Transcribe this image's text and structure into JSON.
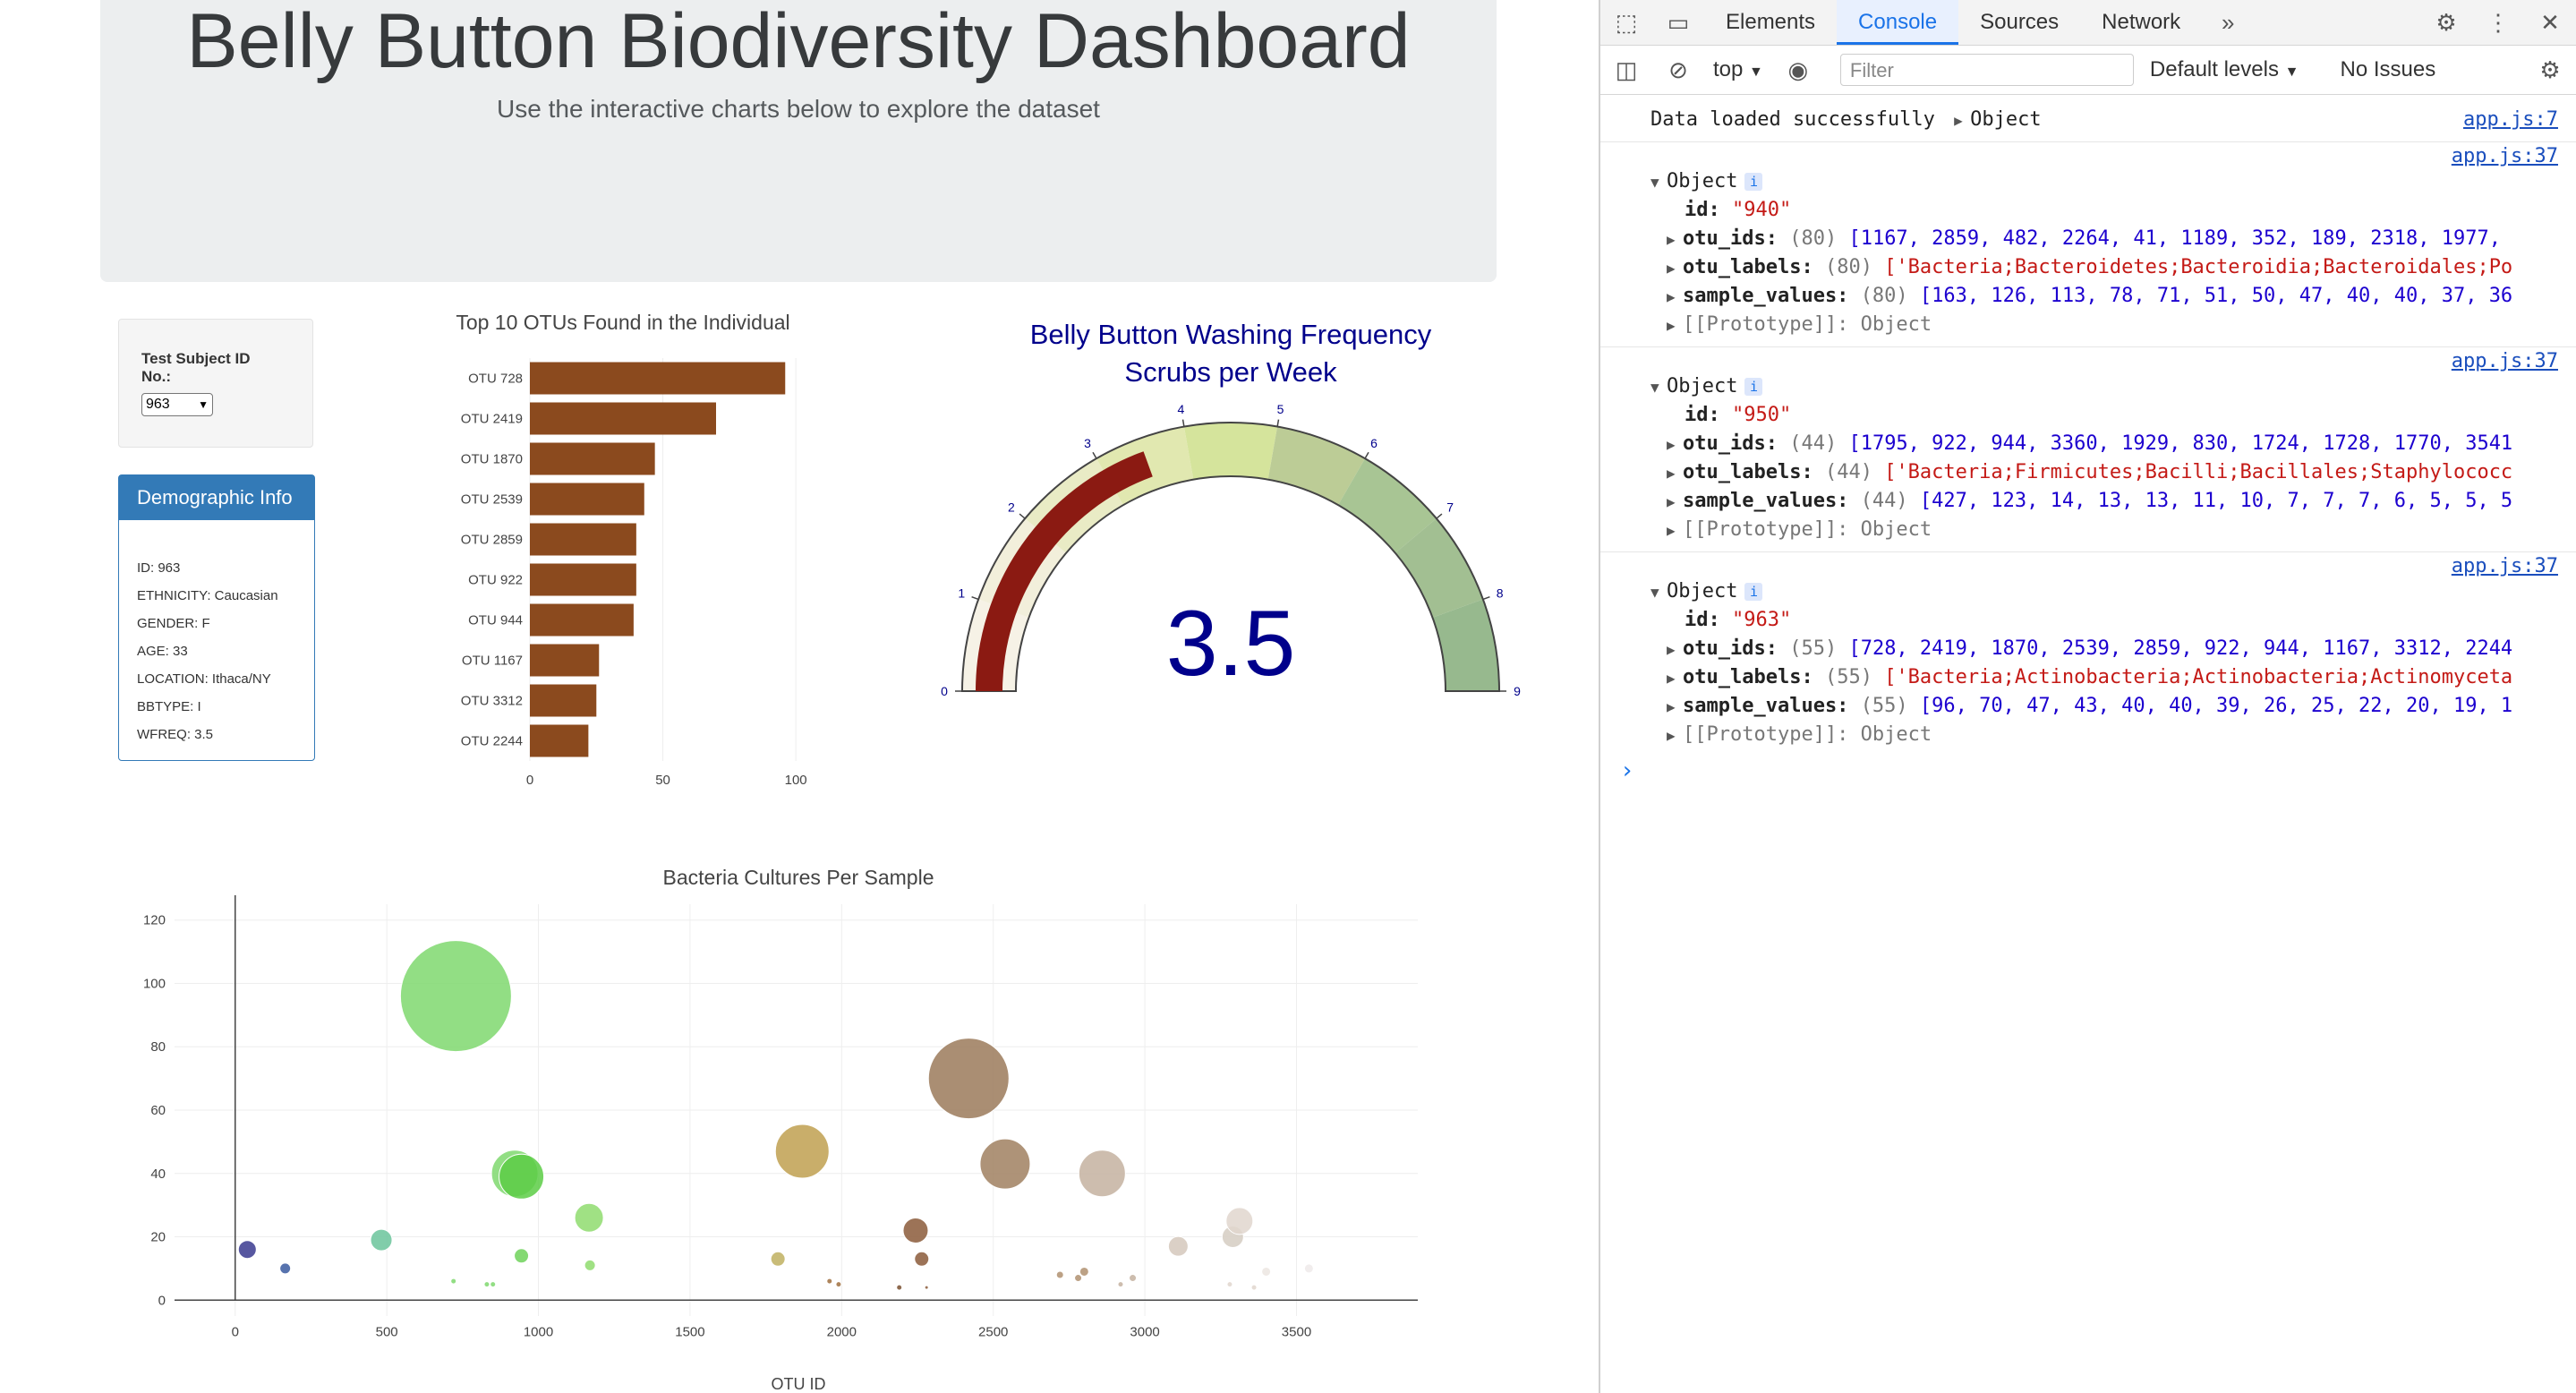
{
  "header": {
    "title": "Belly Button Biodiversity Dashboard",
    "subtitle": "Use the interactive charts below to explore the dataset"
  },
  "selector": {
    "label": "Test Subject ID No.:",
    "selected": "963"
  },
  "demographics": {
    "heading": "Demographic Info",
    "rows": [
      "ID: 963",
      "ETHNICITY: Caucasian",
      "GENDER: F",
      "AGE: 33",
      "LOCATION: Ithaca/NY",
      "BBTYPE: I",
      "WFREQ: 3.5"
    ]
  },
  "chart_data": [
    {
      "type": "bar",
      "orientation": "horizontal",
      "title": "Top 10 OTUs Found in the Individual",
      "categories": [
        "OTU 728",
        "OTU 2419",
        "OTU 1870",
        "OTU 2539",
        "OTU 2859",
        "OTU 922",
        "OTU 944",
        "OTU 1167",
        "OTU 3312",
        "OTU 2244"
      ],
      "values": [
        96,
        70,
        47,
        43,
        40,
        40,
        39,
        26,
        25,
        22
      ],
      "xlim": [
        0,
        105
      ],
      "xticks": [
        "0",
        "50",
        "100"
      ],
      "color": "#8b4a1e"
    },
    {
      "type": "gauge",
      "title": "Belly Button Washing Frequency",
      "subtitle": "Scrubs per Week",
      "value": 3.5,
      "range": [
        0,
        9
      ],
      "ticks": [
        "0",
        "1",
        "2",
        "3",
        "4",
        "5",
        "6",
        "7",
        "8",
        "9"
      ],
      "bar_color": "#8b1a12",
      "step_colors": [
        "#f6f2e6",
        "#f2efdb",
        "#e9ebc5",
        "#e1e8b0",
        "#d5e49c",
        "#bccc96",
        "#a8c594",
        "#a2bf92",
        "#97b98e"
      ]
    },
    {
      "type": "scatter",
      "subtype": "bubble",
      "title": "Bacteria Cultures Per Sample",
      "xlabel": "OTU ID",
      "xlim": [
        -200,
        3900
      ],
      "ylim": [
        -5,
        125
      ],
      "xticks": [
        0,
        500,
        1000,
        1500,
        2000,
        2500,
        3000,
        3500
      ],
      "yticks": [
        0,
        20,
        40,
        60,
        80,
        100,
        120
      ],
      "points": [
        {
          "x": 40,
          "y": 16,
          "r": 10,
          "color": "#3a3a8f"
        },
        {
          "x": 165,
          "y": 10,
          "r": 6,
          "color": "#3a5aa0"
        },
        {
          "x": 482,
          "y": 19,
          "r": 12,
          "color": "#6bc49b"
        },
        {
          "x": 728,
          "y": 96,
          "r": 62,
          "color": "#7fd86e"
        },
        {
          "x": 720,
          "y": 6,
          "r": 3,
          "color": "#7fd86e"
        },
        {
          "x": 830,
          "y": 5,
          "r": 3,
          "color": "#7fd86e"
        },
        {
          "x": 850,
          "y": 5,
          "r": 3,
          "color": "#7fd86e"
        },
        {
          "x": 922,
          "y": 40,
          "r": 26,
          "color": "#7fd86e"
        },
        {
          "x": 944,
          "y": 39,
          "r": 25,
          "color": "#5ccc45"
        },
        {
          "x": 944,
          "y": 14,
          "r": 8,
          "color": "#6ed25a"
        },
        {
          "x": 1167,
          "y": 26,
          "r": 16,
          "color": "#8fdc6e"
        },
        {
          "x": 1170,
          "y": 11,
          "r": 6,
          "color": "#8fdc6e"
        },
        {
          "x": 1790,
          "y": 13,
          "r": 8,
          "color": "#c0b060"
        },
        {
          "x": 1870,
          "y": 47,
          "r": 30,
          "color": "#c0a050"
        },
        {
          "x": 1960,
          "y": 6,
          "r": 3,
          "color": "#a07040"
        },
        {
          "x": 1990,
          "y": 5,
          "r": 3,
          "color": "#a07040"
        },
        {
          "x": 2190,
          "y": 4,
          "r": 3,
          "color": "#7a5030"
        },
        {
          "x": 2244,
          "y": 22,
          "r": 14,
          "color": "#8b5a3a"
        },
        {
          "x": 2264,
          "y": 13,
          "r": 8,
          "color": "#8b5a3a"
        },
        {
          "x": 2280,
          "y": 4,
          "r": 2,
          "color": "#8b5a3a"
        },
        {
          "x": 2419,
          "y": 70,
          "r": 45,
          "color": "#9b7a5a"
        },
        {
          "x": 2539,
          "y": 43,
          "r": 28,
          "color": "#a08060"
        },
        {
          "x": 2720,
          "y": 8,
          "r": 4,
          "color": "#b09070"
        },
        {
          "x": 2780,
          "y": 7,
          "r": 4,
          "color": "#b09070"
        },
        {
          "x": 2800,
          "y": 9,
          "r": 5,
          "color": "#b09070"
        },
        {
          "x": 2859,
          "y": 40,
          "r": 26,
          "color": "#c4b2a0"
        },
        {
          "x": 2920,
          "y": 5,
          "r": 3,
          "color": "#c4b2a0"
        },
        {
          "x": 2960,
          "y": 7,
          "r": 4,
          "color": "#c4b2a0"
        },
        {
          "x": 3110,
          "y": 17,
          "r": 11,
          "color": "#d5c8bc"
        },
        {
          "x": 3290,
          "y": 20,
          "r": 12,
          "color": "#d5ccc2"
        },
        {
          "x": 3312,
          "y": 25,
          "r": 15,
          "color": "#e0d6ce"
        },
        {
          "x": 3280,
          "y": 5,
          "r": 3,
          "color": "#e0d6ce"
        },
        {
          "x": 3360,
          "y": 4,
          "r": 3,
          "color": "#e0d6ce"
        },
        {
          "x": 3400,
          "y": 9,
          "r": 5,
          "color": "#ece6e2"
        },
        {
          "x": 3541,
          "y": 10,
          "r": 5,
          "color": "#eeeaea"
        }
      ]
    }
  ],
  "devtools": {
    "tabs": [
      "Elements",
      "Console",
      "Sources",
      "Network"
    ],
    "active_tab": "Console",
    "context": "top",
    "filter_placeholder": "Filter",
    "levels": "Default levels",
    "issues": "No Issues",
    "logs": [
      {
        "text": "Data loaded successfully",
        "suffix": "Object",
        "src": "app.js:7"
      },
      {
        "src": "app.js:37",
        "head": "Object",
        "id_key": "id:",
        "id": "\"940\"",
        "ids_key": "otu_ids:",
        "ids_count": "(80)",
        "ids": "[1167, 2859, 482, 2264, 41, 1189, 352, 189, 2318, 1977,",
        "labels_key": "otu_labels:",
        "labels_count": "(80)",
        "labels": "['Bacteria;Bacteroidetes;Bacteroidia;Bacteroidales;Po",
        "values_key": "sample_values:",
        "values_count": "(80)",
        "values": "[163, 126, 113, 78, 71, 51, 50, 47, 40, 40, 37, 36",
        "proto": "[[Prototype]]: Object"
      },
      {
        "src": "app.js:37",
        "head": "Object",
        "id_key": "id:",
        "id": "\"950\"",
        "ids_key": "otu_ids:",
        "ids_count": "(44)",
        "ids": "[1795, 922, 944, 3360, 1929, 830, 1724, 1728, 1770, 3541",
        "labels_key": "otu_labels:",
        "labels_count": "(44)",
        "labels": "['Bacteria;Firmicutes;Bacilli;Bacillales;Staphylococc",
        "values_key": "sample_values:",
        "values_count": "(44)",
        "values": "[427, 123, 14, 13, 13, 11, 10, 7, 7, 7, 6, 5, 5, 5",
        "proto": "[[Prototype]]: Object"
      },
      {
        "src": "app.js:37",
        "head": "Object",
        "id_key": "id:",
        "id": "\"963\"",
        "ids_key": "otu_ids:",
        "ids_count": "(55)",
        "ids": "[728, 2419, 1870, 2539, 2859, 922, 944, 1167, 3312, 2244",
        "labels_key": "otu_labels:",
        "labels_count": "(55)",
        "labels": "['Bacteria;Actinobacteria;Actinobacteria;Actinomyceta",
        "values_key": "sample_values:",
        "values_count": "(55)",
        "values": "[96, 70, 47, 43, 40, 40, 39, 26, 25, 22, 20, 19, 1",
        "proto": "[[Prototype]]: Object"
      }
    ],
    "prompt": "›"
  }
}
